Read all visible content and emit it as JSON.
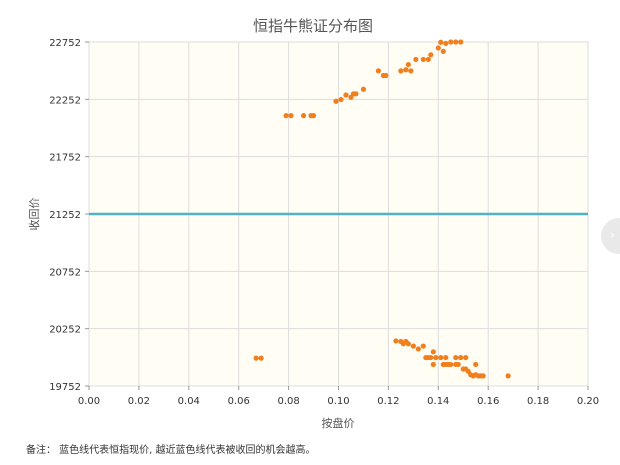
{
  "chart_data": {
    "type": "scatter",
    "title": "恒指牛熊证分布图",
    "xlabel": "按盘价",
    "ylabel": "收回价",
    "xlim": [
      0,
      0.2
    ],
    "ylim": [
      19752,
      22752
    ],
    "x_ticks": [
      "0.00",
      "0.02",
      "0.04",
      "0.06",
      "0.08",
      "0.10",
      "0.12",
      "0.14",
      "0.16",
      "0.18",
      "0.20"
    ],
    "y_ticks": [
      "19752",
      "20252",
      "20752",
      "21252",
      "21752",
      "22252",
      "22752"
    ],
    "reference_line": {
      "name": "恒指现价",
      "value": 21252,
      "color": "#4db3c7"
    },
    "series": [
      {
        "color": "#f07f1e",
        "points": [
          [
            0.079,
            22110
          ],
          [
            0.081,
            22110
          ],
          [
            0.086,
            22110
          ],
          [
            0.089,
            22110
          ],
          [
            0.09,
            22110
          ],
          [
            0.099,
            22235
          ],
          [
            0.101,
            22250
          ],
          [
            0.103,
            22290
          ],
          [
            0.105,
            22270
          ],
          [
            0.106,
            22300
          ],
          [
            0.107,
            22300
          ],
          [
            0.11,
            22340
          ],
          [
            0.116,
            22500
          ],
          [
            0.118,
            22460
          ],
          [
            0.119,
            22460
          ],
          [
            0.125,
            22500
          ],
          [
            0.127,
            22510
          ],
          [
            0.128,
            22555
          ],
          [
            0.129,
            22500
          ],
          [
            0.131,
            22600
          ],
          [
            0.134,
            22600
          ],
          [
            0.136,
            22600
          ],
          [
            0.137,
            22640
          ],
          [
            0.14,
            22700
          ],
          [
            0.141,
            22750
          ],
          [
            0.142,
            22670
          ],
          [
            0.143,
            22740
          ],
          [
            0.145,
            22752
          ],
          [
            0.147,
            22752
          ],
          [
            0.149,
            22752
          ],
          [
            0.067,
            19995
          ],
          [
            0.069,
            19995
          ],
          [
            0.123,
            20145
          ],
          [
            0.125,
            20140
          ],
          [
            0.126,
            20120
          ],
          [
            0.127,
            20140
          ],
          [
            0.128,
            20120
          ],
          [
            0.13,
            20100
          ],
          [
            0.132,
            20075
          ],
          [
            0.134,
            20100
          ],
          [
            0.135,
            20000
          ],
          [
            0.136,
            20000
          ],
          [
            0.137,
            20000
          ],
          [
            0.138,
            20050
          ],
          [
            0.138,
            19940
          ],
          [
            0.139,
            20000
          ],
          [
            0.141,
            20000
          ],
          [
            0.142,
            19940
          ],
          [
            0.143,
            19940
          ],
          [
            0.144,
            19940
          ],
          [
            0.145,
            19940
          ],
          [
            0.147,
            19940
          ],
          [
            0.148,
            19940
          ],
          [
            0.15,
            19900
          ],
          [
            0.151,
            19900
          ],
          [
            0.152,
            19880
          ],
          [
            0.153,
            19850
          ],
          [
            0.154,
            19840
          ],
          [
            0.155,
            19850
          ],
          [
            0.156,
            19840
          ],
          [
            0.157,
            19840
          ],
          [
            0.158,
            19840
          ],
          [
            0.143,
            20000
          ],
          [
            0.147,
            20000
          ],
          [
            0.149,
            20000
          ],
          [
            0.151,
            20000
          ],
          [
            0.155,
            19940
          ],
          [
            0.168,
            19840
          ]
        ]
      }
    ]
  },
  "note": "备注：  蓝色线代表恒指现价, 越近蓝色线代表被收回的机会越高。",
  "side_button": {
    "icon": "›"
  }
}
